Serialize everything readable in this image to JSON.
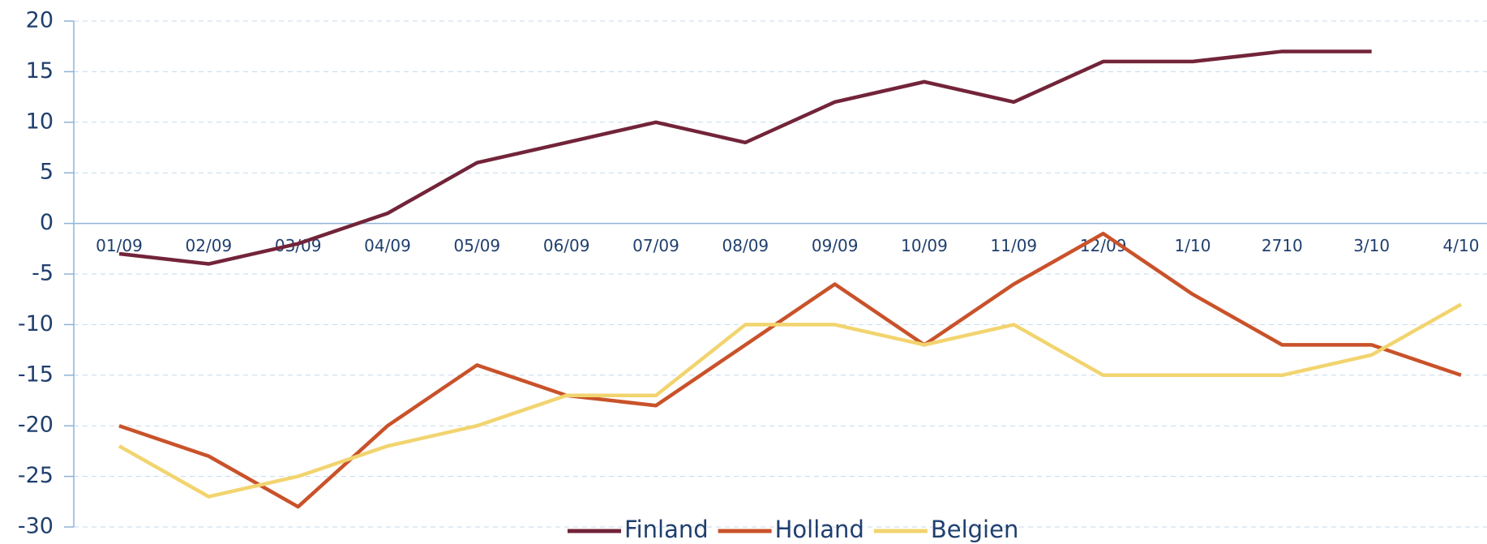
{
  "chart_data": {
    "type": "line",
    "categories": [
      "01/09",
      "02/09",
      "03/09",
      "04/09",
      "05/09",
      "06/09",
      "07/09",
      "08/09",
      "09/09",
      "10/09",
      "11/09",
      "12/09",
      "1/10",
      "2710",
      "3/10",
      "4/10"
    ],
    "series": [
      {
        "name": "Finland",
        "color": "#722439",
        "values": [
          -3,
          -4,
          -2,
          1,
          6,
          8,
          10,
          8,
          12,
          14,
          12,
          16,
          16,
          17,
          17,
          null
        ]
      },
      {
        "name": "Holland",
        "color": "#c9522a",
        "values": [
          -20,
          -23,
          -28,
          -20,
          -14,
          -17,
          -18,
          -12,
          -6,
          -12,
          -6,
          -1,
          -7,
          -12,
          -12,
          -15
        ]
      },
      {
        "name": "Belgien",
        "color": "#f2d46f",
        "values": [
          -22,
          -27,
          -25,
          -22,
          -20,
          -17,
          -17,
          -10,
          -10,
          -12,
          -10,
          -15,
          -15,
          -15,
          -13,
          -8
        ]
      }
    ],
    "ylim": [
      -30,
      20
    ],
    "yticks": [
      -30,
      -25,
      -20,
      -15,
      -10,
      -5,
      0,
      5,
      10,
      15,
      20
    ],
    "grid": true,
    "legend": "bottom"
  }
}
